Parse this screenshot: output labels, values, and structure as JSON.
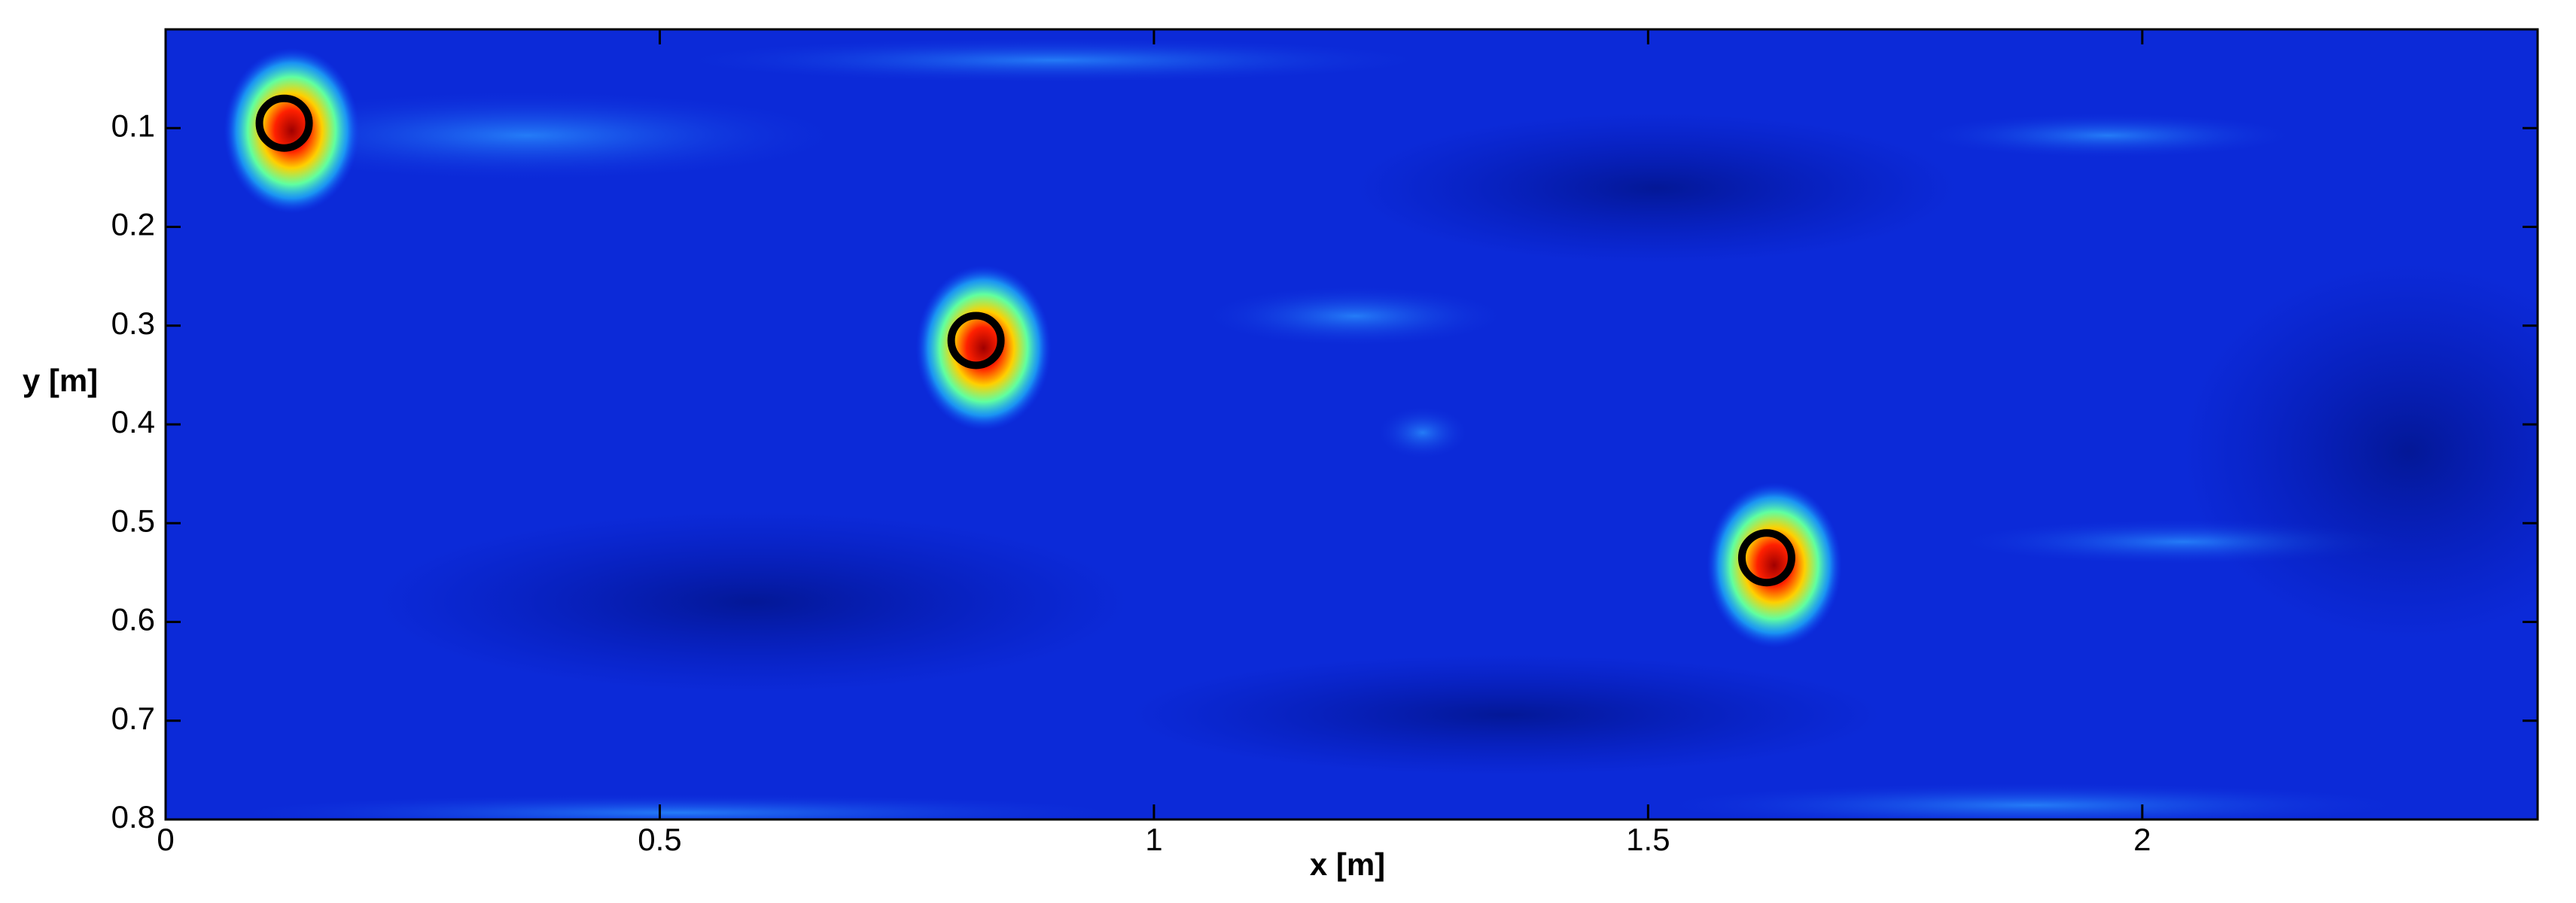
{
  "chart_data": {
    "type": "scatter",
    "xlabel": "x [m]",
    "ylabel": "y [m]",
    "xlim": [
      0,
      2.4
    ],
    "xticks": [
      0,
      0.5,
      1,
      1.5,
      2
    ],
    "ylim": [
      0,
      0.8
    ],
    "yticks": [
      0.1,
      0.2,
      0.3,
      0.4,
      0.5,
      0.6,
      0.7,
      0.8
    ],
    "y_reversed": true,
    "series": [
      {
        "color": "#000000",
        "x": [
          0.12,
          0.82,
          1.62
        ],
        "values": [
          0.095,
          0.315,
          0.535
        ]
      }
    ]
  }
}
